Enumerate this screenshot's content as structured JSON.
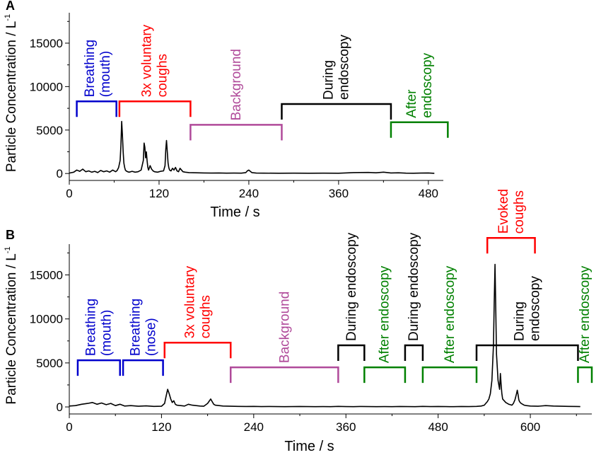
{
  "chart_data": [
    {
      "type": "line",
      "panel_label": "A",
      "xlabel": "Time / s",
      "ylabel": "Particle Concentration / L",
      "ylabel_sup": "-1",
      "xlim": [
        0,
        500
      ],
      "ylim": [
        -800,
        18500
      ],
      "xticks": [
        0,
        120,
        240,
        360,
        480
      ],
      "yticks": [
        0,
        5000,
        10000,
        15000
      ],
      "series": [
        {
          "color": "#000000",
          "x": [
            0,
            6,
            10,
            14,
            18,
            22,
            26,
            30,
            34,
            38,
            42,
            46,
            50,
            54,
            58,
            62,
            64,
            66,
            68,
            69,
            70,
            71,
            72,
            73,
            74,
            75,
            76,
            78,
            80,
            84,
            88,
            92,
            96,
            99,
            100,
            101,
            102,
            103,
            104,
            105,
            106,
            108,
            110,
            112,
            114,
            118,
            122,
            126,
            128,
            129,
            130,
            131,
            132,
            133,
            134,
            136,
            138,
            140,
            142,
            144,
            146,
            148,
            150,
            152,
            155,
            160,
            170,
            180,
            190,
            200,
            210,
            220,
            230,
            236,
            238,
            240,
            242,
            244,
            250,
            260,
            280,
            300,
            320,
            340,
            360,
            380,
            400,
            410,
            420,
            430,
            440,
            450,
            460,
            470,
            480,
            488
          ],
          "y": [
            50,
            150,
            400,
            250,
            500,
            200,
            300,
            150,
            250,
            100,
            350,
            200,
            300,
            150,
            400,
            200,
            350,
            700,
            1500,
            3200,
            6000,
            4500,
            2500,
            1200,
            700,
            400,
            300,
            200,
            150,
            250,
            150,
            200,
            400,
            1500,
            3500,
            3000,
            1800,
            2500,
            1500,
            700,
            400,
            900,
            500,
            300,
            200,
            150,
            250,
            300,
            900,
            2800,
            3800,
            2500,
            1200,
            700,
            400,
            300,
            600,
            400,
            700,
            300,
            200,
            600,
            400,
            200,
            150,
            100,
            80,
            60,
            50,
            60,
            40,
            50,
            40,
            100,
            300,
            400,
            250,
            100,
            50,
            40,
            30,
            40,
            30,
            40,
            30,
            100,
            120,
            80,
            150,
            60,
            80,
            40,
            30,
            50,
            60,
            20
          ]
        }
      ],
      "annotations": [
        {
          "lines": [
            "Breathing",
            "(mouth)"
          ],
          "color": "#0000cc",
          "x1": 10,
          "x2": 63,
          "level": 8300,
          "text_x": 38
        },
        {
          "lines": [
            "3x voluntary",
            "coughs"
          ],
          "color": "#ff0000",
          "x1": 67,
          "x2": 162,
          "level": 8300,
          "text_x": 114
        },
        {
          "lines": [
            "Background"
          ],
          "color": "#b04a9a",
          "x1": 162,
          "x2": 284,
          "level": 5600,
          "text_x": 223
        },
        {
          "lines": [
            "During",
            "endoscopy"
          ],
          "color": "#000000",
          "x1": 284,
          "x2": 430,
          "level": 8000,
          "text_x": 357
        },
        {
          "lines": [
            "After",
            "endoscopy"
          ],
          "color": "#008000",
          "x1": 430,
          "x2": 506,
          "level": 5900,
          "text_x": 468
        }
      ]
    },
    {
      "type": "line",
      "panel_label": "B",
      "xlabel": "Time / s",
      "ylabel": "Particle Concentration / L",
      "ylabel_sup": "-1",
      "xlim": [
        0,
        680
      ],
      "ylim": [
        -800,
        18500
      ],
      "xticks": [
        0,
        120,
        240,
        360,
        480,
        600
      ],
      "yticks": [
        0,
        5000,
        10000,
        15000
      ],
      "series": [
        {
          "color": "#000000",
          "x": [
            0,
            8,
            16,
            24,
            30,
            36,
            42,
            48,
            54,
            60,
            66,
            72,
            80,
            90,
            100,
            110,
            120,
            124,
            126,
            128,
            130,
            132,
            134,
            136,
            138,
            140,
            145,
            150,
            155,
            160,
            165,
            170,
            175,
            180,
            184,
            186,
            188,
            190,
            195,
            200,
            210,
            220,
            230,
            240,
            250,
            260,
            270,
            280,
            290,
            300,
            310,
            320,
            330,
            340,
            350,
            360,
            370,
            380,
            390,
            400,
            410,
            420,
            430,
            440,
            450,
            460,
            470,
            480,
            490,
            500,
            510,
            520,
            530,
            536,
            540,
            542,
            544,
            546,
            548,
            550,
            552,
            553,
            554,
            555,
            556,
            558,
            560,
            561,
            562,
            563,
            564,
            566,
            568,
            570,
            572,
            574,
            576,
            578,
            580,
            582,
            583,
            584,
            585,
            586,
            588,
            590,
            592,
            595,
            600,
            610,
            620,
            630,
            640,
            650,
            660,
            665
          ],
          "y": [
            100,
            150,
            300,
            400,
            500,
            300,
            450,
            250,
            400,
            150,
            300,
            100,
            150,
            80,
            120,
            60,
            80,
            400,
            1200,
            2000,
            1500,
            900,
            500,
            700,
            300,
            200,
            150,
            100,
            300,
            200,
            150,
            100,
            80,
            400,
            900,
            600,
            300,
            200,
            150,
            100,
            80,
            60,
            50,
            60,
            40,
            50,
            40,
            30,
            40,
            50,
            40,
            30,
            40,
            30,
            60,
            40,
            30,
            50,
            40,
            30,
            40,
            30,
            50,
            40,
            30,
            60,
            40,
            50,
            40,
            30,
            50,
            40,
            60,
            100,
            200,
            400,
            600,
            900,
            1500,
            3000,
            7000,
            12000,
            16200,
            11000,
            6000,
            3000,
            2000,
            3800,
            2500,
            1500,
            900,
            700,
            500,
            400,
            300,
            250,
            200,
            400,
            800,
            1500,
            1900,
            1400,
            800,
            600,
            400,
            300,
            200,
            150,
            100,
            80,
            150,
            100,
            80,
            60,
            50,
            40
          ]
        }
      ],
      "annotations": [
        {
          "lines": [
            "Breathing",
            "(mouth)"
          ],
          "color": "#0000cc",
          "x1": 11,
          "x2": 66,
          "level": 5300,
          "text_x": 38
        },
        {
          "lines": [
            "Breathing",
            "(nose)"
          ],
          "color": "#0000cc",
          "x1": 70,
          "x2": 122,
          "level": 5300,
          "text_x": 96
        },
        {
          "lines": [
            "3x voluntary",
            "coughs"
          ],
          "color": "#ff0000",
          "x1": 124,
          "x2": 210,
          "level": 7300,
          "text_x": 167
        },
        {
          "lines": [
            "Background"
          ],
          "color": "#b04a9a",
          "x1": 210,
          "x2": 350,
          "level": 4500,
          "text_x": 280
        },
        {
          "lines": [
            "During endoscopy"
          ],
          "color": "#000000",
          "x1": 350,
          "x2": 384,
          "level": 7000,
          "text_x": 367
        },
        {
          "lines": [
            "After endoscopy"
          ],
          "color": "#008000",
          "x1": 384,
          "x2": 437,
          "level": 4500,
          "text_x": 410
        },
        {
          "lines": [
            "During endoscopy"
          ],
          "color": "#000000",
          "x1": 437,
          "x2": 460,
          "level": 7000,
          "text_x": 448
        },
        {
          "lines": [
            "After endoscopy"
          ],
          "color": "#008000",
          "x1": 460,
          "x2": 530,
          "level": 4500,
          "text_x": 495
        },
        {
          "lines": [
            "Evoked",
            "coughs"
          ],
          "color": "#ff0000",
          "x1": 544,
          "x2": 606,
          "level": 19200,
          "text_x": 575
        },
        {
          "lines": [
            "During",
            "endoscopy"
          ],
          "color": "#000000",
          "x1": 530,
          "x2": 662,
          "level": 7000,
          "text_x": 596
        },
        {
          "lines": [
            "After endoscopy"
          ],
          "color": "#008000",
          "x1": 662,
          "x2": 680,
          "level": 4500,
          "text_x": 671
        }
      ]
    }
  ]
}
